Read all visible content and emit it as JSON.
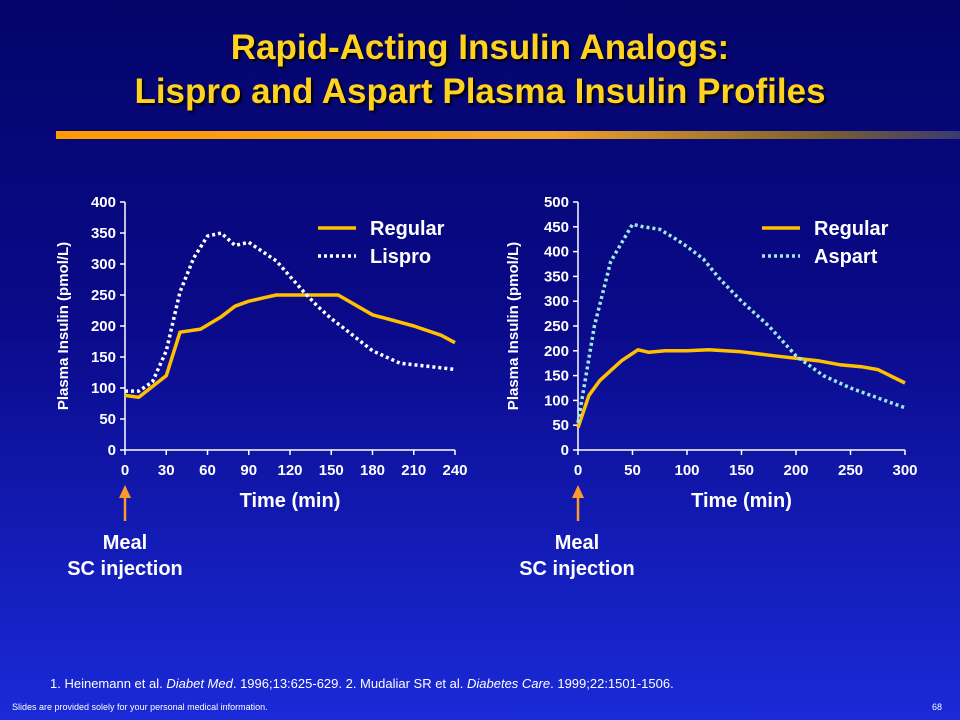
{
  "slide": {
    "title_line1": "Rapid-Acting Insulin Analogs:",
    "title_line2": "Lispro and Aspart Plasma Insulin Profiles",
    "annotation1": [
      "Meal",
      "SC injection"
    ],
    "annotation2": [
      "Meal",
      "SC injection"
    ],
    "ref_prefix1": "1. Heinemann et al. ",
    "ref_journal1": "Diabet Med",
    "ref_mid": ". 1996;13:625-629. 2. Mudaliar SR et al. ",
    "ref_journal2": "Diabetes Care",
    "ref_suffix": ". 1999;22:1501-1506.",
    "disclaimer": "Slides are provided solely for your personal medical information.",
    "page_number": "68",
    "colors": {
      "regular": "#ffc000",
      "lispro": "#ffffff",
      "aspart": "#9fe8e8",
      "title": "#ffd21f",
      "arrow": "#ff9a2a"
    }
  },
  "chart_data": [
    {
      "type": "line",
      "xlabel": "Time (min)",
      "ylabel": "Plasma Insulin (pmol/L)",
      "xlim": [
        0,
        240
      ],
      "ylim": [
        0,
        400
      ],
      "xticks": [
        0,
        30,
        60,
        90,
        120,
        150,
        180,
        210,
        240
      ],
      "yticks": [
        0,
        50,
        100,
        150,
        200,
        250,
        300,
        350,
        400
      ],
      "legend_position": "top-right",
      "series": [
        {
          "name": "Regular",
          "style": "solid",
          "color": "#ffc000",
          "x": [
            0,
            10,
            30,
            40,
            55,
            70,
            80,
            90,
            100,
            110,
            120,
            135,
            155,
            180,
            210,
            230,
            240
          ],
          "y": [
            88,
            85,
            120,
            190,
            195,
            215,
            232,
            240,
            245,
            250,
            250,
            250,
            250,
            218,
            200,
            185,
            173
          ]
        },
        {
          "name": "Lispro",
          "style": "dotted",
          "color": "#ffffff",
          "x": [
            0,
            10,
            20,
            30,
            40,
            50,
            60,
            70,
            80,
            90,
            100,
            110,
            120,
            130,
            140,
            150,
            160,
            180,
            200,
            220,
            240
          ],
          "y": [
            95,
            95,
            110,
            160,
            255,
            310,
            345,
            350,
            330,
            335,
            320,
            305,
            280,
            255,
            232,
            212,
            195,
            160,
            140,
            135,
            130
          ]
        }
      ]
    },
    {
      "type": "line",
      "xlabel": "Time (min)",
      "ylabel": "Plasma Insulin (pmol/L)",
      "xlim": [
        0,
        300
      ],
      "ylim": [
        0,
        500
      ],
      "xticks": [
        0,
        50,
        100,
        150,
        200,
        250,
        300
      ],
      "yticks": [
        0,
        50,
        100,
        150,
        200,
        250,
        300,
        350,
        400,
        450,
        500
      ],
      "legend_position": "top-right",
      "series": [
        {
          "name": "Regular",
          "style": "solid",
          "color": "#ffc000",
          "x": [
            0,
            10,
            20,
            40,
            55,
            65,
            80,
            100,
            120,
            135,
            150,
            180,
            200,
            220,
            240,
            260,
            275,
            300
          ],
          "y": [
            45,
            110,
            140,
            180,
            202,
            197,
            200,
            200,
            202,
            200,
            198,
            190,
            185,
            180,
            172,
            168,
            162,
            135
          ]
        },
        {
          "name": "Aspart",
          "style": "dotted",
          "color": "#9fe8e8",
          "x": [
            0,
            15,
            30,
            50,
            60,
            75,
            90,
            100,
            115,
            130,
            150,
            175,
            200,
            225,
            250,
            275,
            300
          ],
          "y": [
            55,
            250,
            380,
            455,
            450,
            445,
            425,
            410,
            385,
            345,
            300,
            250,
            190,
            150,
            125,
            105,
            85
          ]
        }
      ]
    }
  ]
}
